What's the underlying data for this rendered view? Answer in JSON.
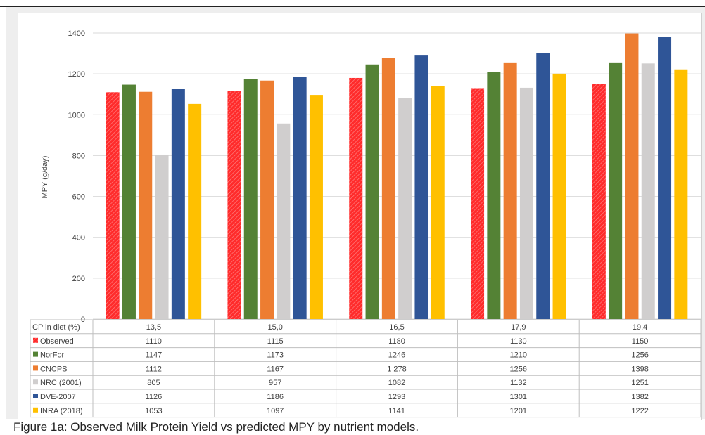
{
  "caption": "Figure 1a: Observed Milk Protein Yield vs predicted MPY by nutrient models.",
  "chart_data": {
    "type": "bar",
    "ylabel": "MPY (g/day)",
    "ylim": [
      0,
      1400
    ],
    "yticks": [
      "0",
      "200",
      "400",
      "600",
      "800",
      "1000",
      "1200",
      "1400"
    ],
    "grid": true,
    "table_header": "CP in diet (%)",
    "categories": [
      "13,5",
      "15,0",
      "16,5",
      "17,9",
      "19,4"
    ],
    "series": [
      {
        "name": "Observed",
        "color": "#ff2b2b",
        "pattern": "hatched",
        "values": [
          1110,
          1115,
          1180,
          1130,
          1150
        ],
        "labels": [
          "1110",
          "1115",
          "1180",
          "1130",
          "1150"
        ]
      },
      {
        "name": "NorFor",
        "color": "#548235",
        "values": [
          1147,
          1173,
          1246,
          1210,
          1256
        ],
        "labels": [
          "1147",
          "1173",
          "1246",
          "1210",
          "1256"
        ]
      },
      {
        "name": "CNCPS",
        "color": "#ed7d31",
        "values": [
          1112,
          1167,
          1278,
          1256,
          1398
        ],
        "labels": [
          "1112",
          "1167",
          "1 278",
          "1256",
          "1398"
        ]
      },
      {
        "name": "NRC (2001)",
        "color": "#d0cece",
        "values": [
          805,
          957,
          1082,
          1132,
          1251
        ],
        "labels": [
          "805",
          "957",
          "1082",
          "1132",
          "1251"
        ]
      },
      {
        "name": "DVE-2007",
        "color": "#2f5597",
        "values": [
          1126,
          1186,
          1293,
          1301,
          1382
        ],
        "labels": [
          "1126",
          "1186",
          "1293",
          "1301",
          "1382"
        ]
      },
      {
        "name": "INRA (2018)",
        "color": "#ffc000",
        "values": [
          1053,
          1097,
          1141,
          1201,
          1222
        ],
        "labels": [
          "1053",
          "1097",
          "1141",
          "1201",
          "1222"
        ]
      }
    ]
  }
}
